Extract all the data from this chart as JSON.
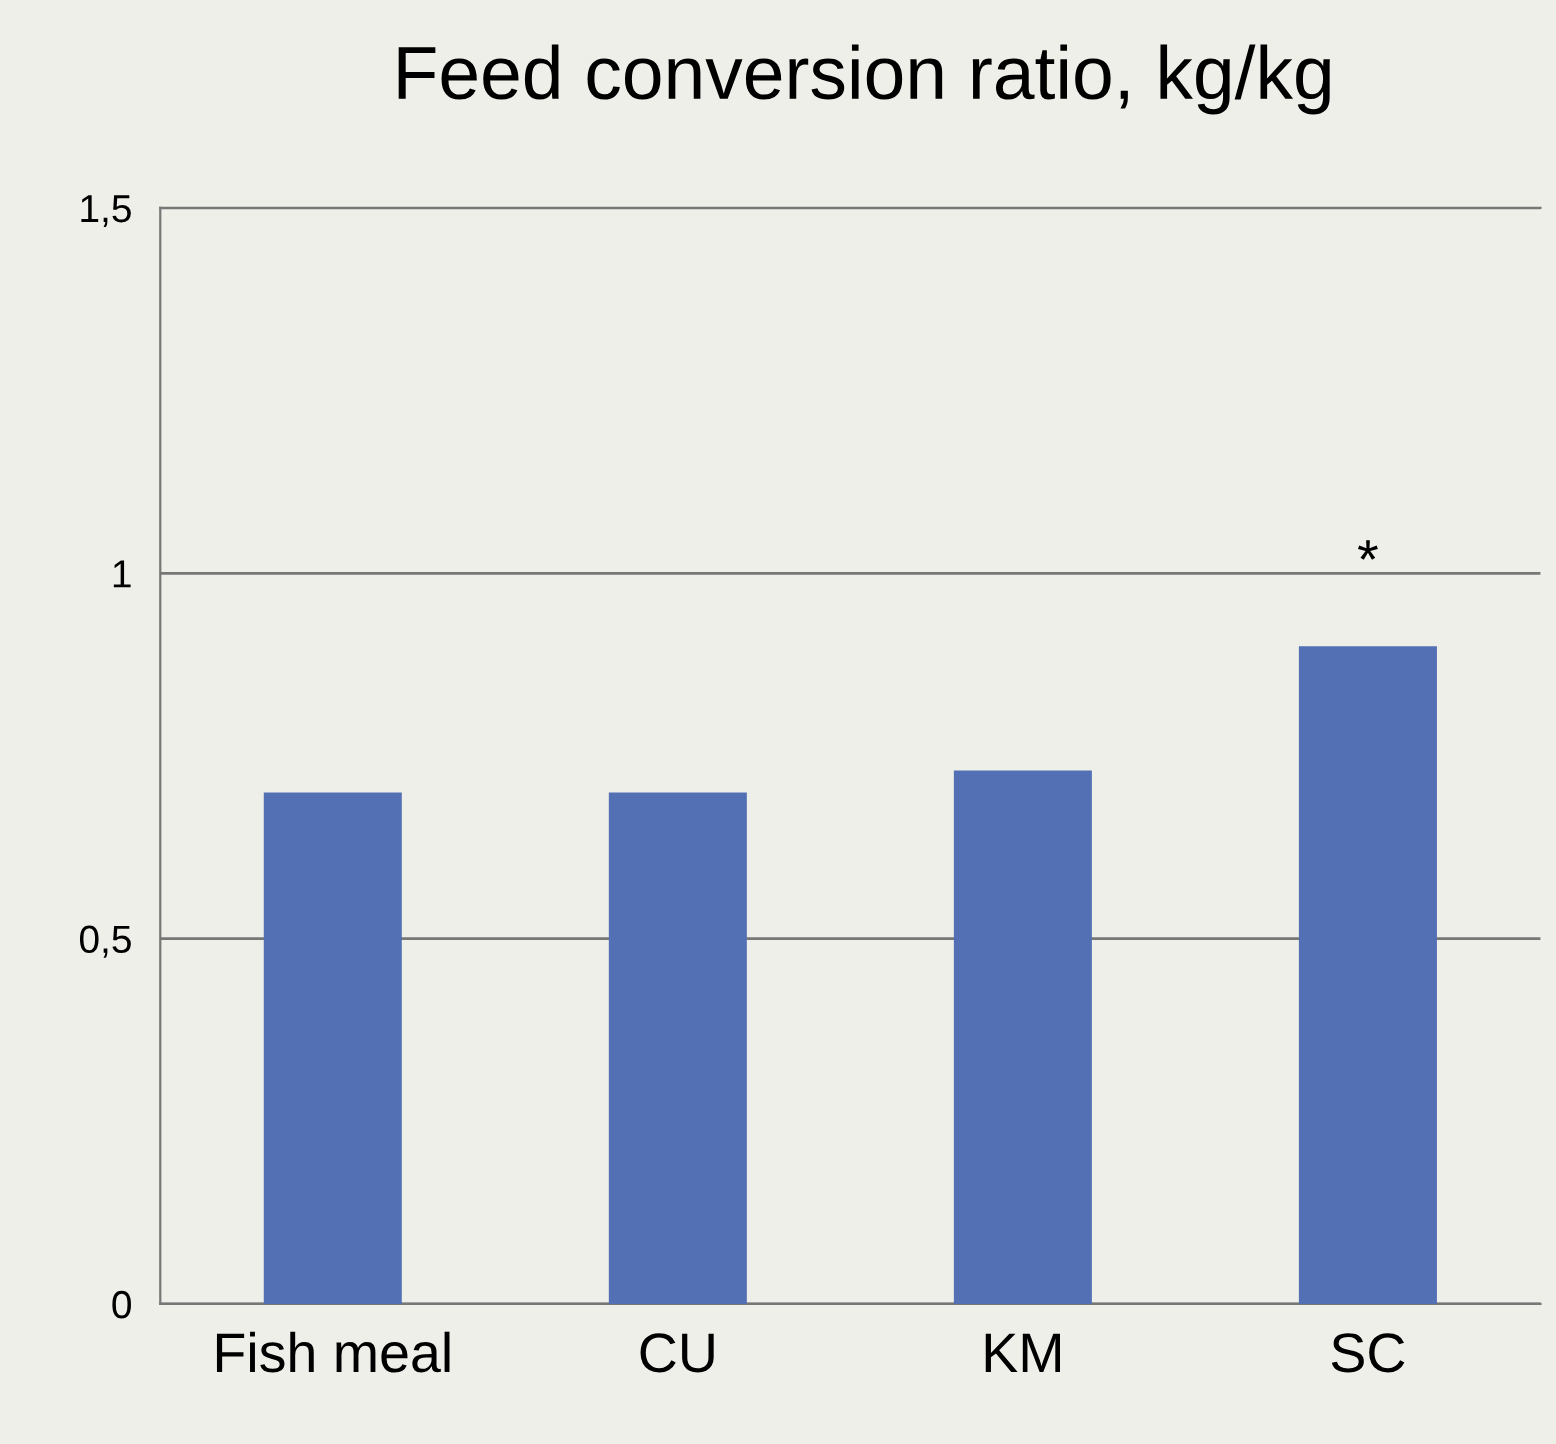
{
  "chart_data": {
    "type": "bar",
    "title": "Feed conversion ratio, kg/kg",
    "categories": [
      "Fish meal",
      "CU",
      "KM",
      "SC"
    ],
    "values": [
      0.7,
      0.7,
      0.73,
      0.9
    ],
    "color": "#5470b4",
    "ylim": [
      0,
      1.5
    ],
    "yticks": [
      0,
      {
        "value": 0.5,
        "label": "0,5"
      },
      1,
      {
        "value": 1.5,
        "label": "1,5"
      }
    ],
    "grid": "y",
    "annotations": [
      "*"
    ]
  }
}
